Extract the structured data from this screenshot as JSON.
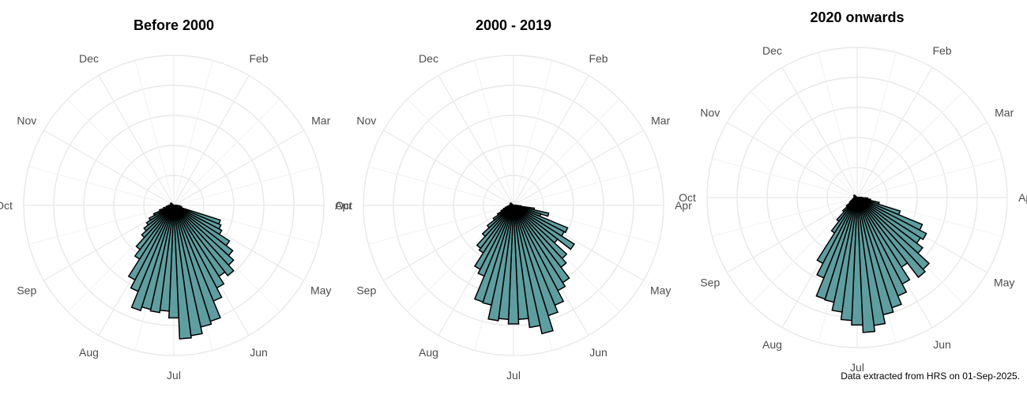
{
  "colors": {
    "bar_fill": "#5f9ea0",
    "bar_outline": "#000000",
    "grid": "#e8e8e8",
    "month_label": "#4d4d4d"
  },
  "chart_data": [
    {
      "type": "polar-bar",
      "title": "Before 2000",
      "months": [
        "Dec",
        "Feb",
        "Mar",
        "Apr",
        "May",
        "Jun",
        "Jul",
        "Aug",
        "Sep",
        "Oct",
        "Nov"
      ],
      "radial_max": 200,
      "series": [
        {
          "direction": [
            90,
            95,
            100,
            105,
            110,
            115,
            120,
            125,
            130,
            135,
            140,
            145,
            150,
            155,
            160,
            165,
            170,
            175,
            180,
            185,
            190,
            195,
            200,
            205,
            210,
            215,
            220,
            225,
            230,
            235,
            240,
            245,
            250,
            255,
            260,
            265,
            270,
            275,
            280,
            285,
            290,
            295,
            300,
            305,
            310
          ],
          "values": [
            4,
            8,
            10,
            11,
            65,
            68,
            72,
            88,
            99,
            108,
            118,
            112,
            124,
            138,
            162,
            166,
            175,
            178,
            150,
            141,
            144,
            142,
            147,
            124,
            112,
            85,
            74,
            58,
            50,
            43,
            37,
            29,
            20,
            14,
            10,
            8,
            6,
            5,
            4,
            4,
            4,
            4,
            4,
            5,
            4
          ]
        }
      ]
    },
    {
      "type": "polar-bar",
      "title": "2000 - 2019",
      "months": [
        "Dec",
        "Feb",
        "Mar",
        "Apr",
        "May",
        "Jun",
        "Jul",
        "Aug",
        "Sep",
        "Oct",
        "Nov"
      ],
      "radial_max": 200,
      "series": [
        {
          "direction": [
            90,
            95,
            100,
            105,
            110,
            115,
            120,
            125,
            130,
            135,
            140,
            145,
            150,
            155,
            160,
            165,
            170,
            175,
            180,
            185,
            190,
            195,
            200,
            205,
            210,
            215,
            220,
            225,
            230,
            235,
            240,
            245,
            250,
            255,
            260,
            265,
            270,
            275,
            280,
            285,
            290,
            295,
            300,
            305,
            310
          ],
          "values": [
            4,
            10,
            28,
            48,
            38,
            78,
            76,
            96,
            74,
            96,
            104,
            122,
            128,
            144,
            154,
            175,
            164,
            152,
            158,
            152,
            155,
            136,
            135,
            102,
            96,
            75,
            72,
            56,
            44,
            32,
            24,
            18,
            14,
            11,
            8,
            6,
            5,
            5,
            4,
            4,
            4,
            4,
            4,
            5,
            4
          ]
        }
      ]
    },
    {
      "type": "polar-bar",
      "title": "2020 onwards",
      "months": [
        "Dec",
        "Feb",
        "Mar",
        "Apr",
        "May",
        "Jun",
        "Jul",
        "Aug",
        "Sep",
        "Oct",
        "Nov"
      ],
      "radial_max": 200,
      "series": [
        {
          "direction": [
            90,
            95,
            100,
            105,
            110,
            115,
            120,
            125,
            130,
            135,
            140,
            145,
            150,
            155,
            160,
            165,
            170,
            175,
            180,
            185,
            190,
            195,
            200,
            205,
            210,
            215,
            220,
            225,
            230,
            235,
            240,
            245,
            250,
            255,
            260,
            265,
            270,
            275,
            280,
            285,
            290,
            295,
            300,
            305,
            310
          ],
          "values": [
            6,
            14,
            18,
            30,
            60,
            94,
            104,
            100,
            110,
            130,
            134,
            110,
            130,
            142,
            154,
            160,
            172,
            180,
            170,
            164,
            154,
            143,
            142,
            116,
            99,
            56,
            40,
            26,
            18,
            12,
            10,
            7,
            6,
            5,
            4,
            4,
            4,
            4,
            4,
            4,
            4,
            4,
            5,
            5,
            4
          ]
        }
      ]
    }
  ],
  "footer": {
    "source_note": "Data extracted from HRS on 01-Sep-2025."
  }
}
